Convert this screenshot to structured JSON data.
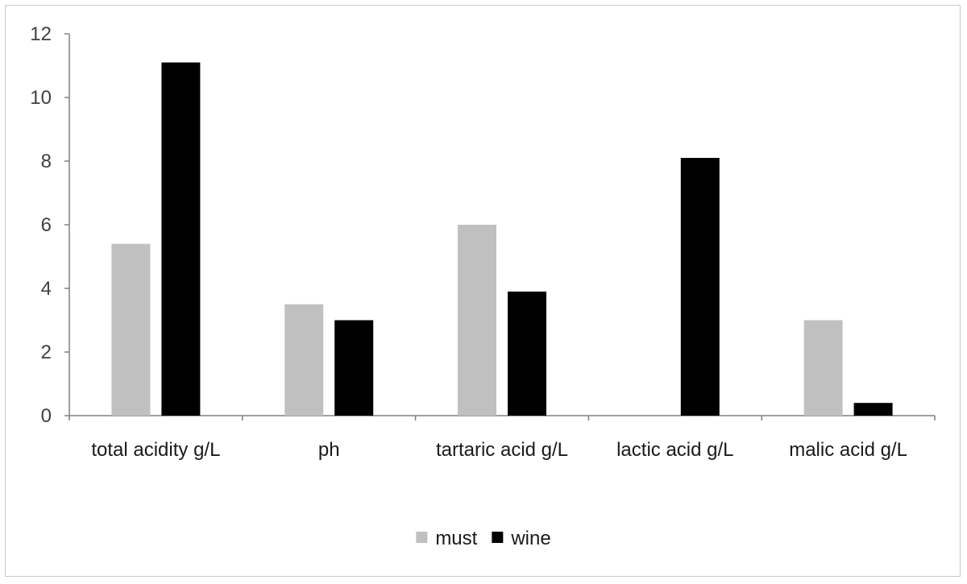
{
  "chart_data": {
    "type": "bar",
    "categories": [
      "total acidity g/L",
      "ph",
      "tartaric acid g/L",
      "lactic acid g/L",
      "malic acid g/L"
    ],
    "series": [
      {
        "name": "must",
        "color": "#c0c0c0",
        "values": [
          5.4,
          3.5,
          6.0,
          0,
          3.0
        ]
      },
      {
        "name": "wine",
        "color": "#000000",
        "values": [
          11.1,
          3.0,
          3.9,
          8.1,
          0.4
        ]
      }
    ],
    "ylim": [
      0,
      12
    ],
    "yticks": [
      0,
      2,
      4,
      6,
      8,
      10,
      12
    ],
    "grid": false,
    "legend": "bottom",
    "title": "",
    "xlabel": "",
    "ylabel": ""
  }
}
